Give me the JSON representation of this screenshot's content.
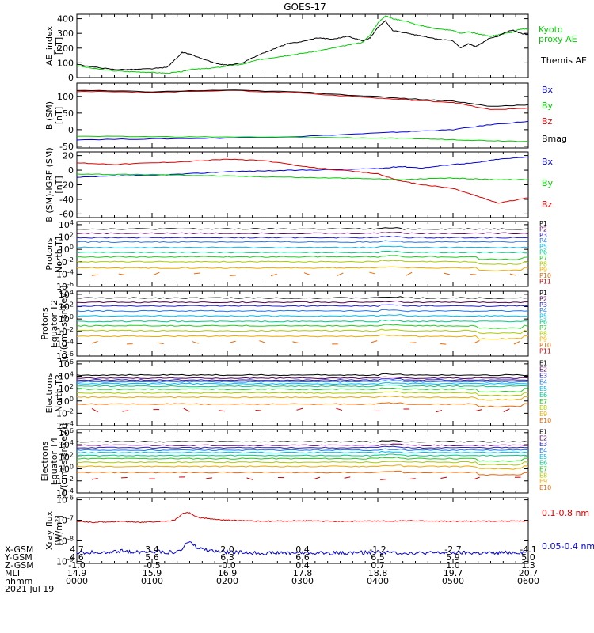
{
  "title": "GOES-17",
  "time_ticks": [
    "0000",
    "0100",
    "0200",
    "0300",
    "0400",
    "0500",
    "0600"
  ],
  "colors": {
    "black": "#000000",
    "red": "#dd0000",
    "green": "#00cc00",
    "blue": "#0000dd",
    "p_colors": [
      "#000000",
      "#5a005a",
      "#2222cc",
      "#2277ee",
      "#00bbee",
      "#00cc88",
      "#22cc22",
      "#aacc00",
      "#eeaa00",
      "#ee6600",
      "#cc0000"
    ],
    "xray_red": "#dd0000",
    "xray_blue": "#0000dd"
  },
  "footer": {
    "rows": [
      {
        "label": "X-GSM",
        "values": [
          "4.7",
          "3.4",
          "2.0",
          "0.4",
          "-1.2",
          "-2.7",
          "-4.1"
        ]
      },
      {
        "label": "Y-GSM",
        "values": [
          "4.6",
          "5.6",
          "6.3",
          "6.6",
          "6.5",
          "5.9",
          "5.0"
        ]
      },
      {
        "label": "Z-GSM",
        "values": [
          "-1.0",
          "-0.5",
          "-0.0",
          "0.4",
          "0.7",
          "1.0",
          "1.3"
        ]
      },
      {
        "label": "MLT",
        "values": [
          "14.9",
          "15.9",
          "16.9",
          "17.8",
          "18.8",
          "19.7",
          "20.7"
        ]
      },
      {
        "label": "hhmm",
        "values": [
          "0000",
          "0100",
          "0200",
          "0300",
          "0400",
          "0500",
          "0600"
        ]
      }
    ],
    "date": "2021 Jul 19"
  },
  "chart_data": [
    {
      "id": "ae",
      "type": "line",
      "ylabel": [
        "AE_index",
        "[nT]"
      ],
      "ylim": [
        0,
        430
      ],
      "yticks": [
        {
          "v": 0,
          "l": "0"
        },
        {
          "v": 100,
          "l": "100"
        },
        {
          "v": 200,
          "l": "200"
        },
        {
          "v": 300,
          "l": "300"
        },
        {
          "v": 400,
          "l": "400"
        }
      ],
      "x_hours": [
        0,
        0.25,
        0.5,
        0.75,
        1.0,
        1.2,
        1.4,
        1.5,
        1.7,
        1.9,
        2.0,
        2.2,
        2.4,
        2.6,
        2.8,
        3.0,
        3.2,
        3.4,
        3.6,
        3.8,
        3.9,
        4.0,
        4.1,
        4.2,
        4.4,
        4.5,
        4.6,
        4.8,
        5.0,
        5.1,
        5.2,
        5.3,
        5.4,
        5.5,
        5.6,
        5.7,
        5.8,
        5.9,
        6.0
      ],
      "series": [
        {
          "name": "Kyoto proxy AE",
          "color": "green",
          "values": [
            80,
            60,
            45,
            40,
            35,
            30,
            40,
            55,
            60,
            70,
            80,
            90,
            120,
            135,
            150,
            165,
            180,
            200,
            220,
            240,
            290,
            370,
            420,
            400,
            380,
            360,
            350,
            330,
            320,
            300,
            310,
            300,
            290,
            280,
            290,
            300,
            310,
            330,
            330
          ]
        },
        {
          "name": "Themis AE",
          "color": "black",
          "values": [
            90,
            70,
            55,
            55,
            60,
            70,
            170,
            160,
            120,
            90,
            85,
            100,
            150,
            190,
            230,
            245,
            270,
            260,
            280,
            250,
            270,
            340,
            385,
            320,
            300,
            290,
            280,
            260,
            250,
            200,
            230,
            210,
            240,
            270,
            280,
            310,
            320,
            300,
            290
          ]
        }
      ],
      "legend": [
        "Kyoto proxy AE",
        "Themis AE"
      ]
    },
    {
      "id": "bsm",
      "type": "line",
      "ylabel": [
        "B (SM)",
        "[nT]"
      ],
      "ylim": [
        -55,
        140
      ],
      "yticks": [
        {
          "v": -50,
          "l": "-50"
        },
        {
          "v": 0,
          "l": "0"
        },
        {
          "v": 50,
          "l": "50"
        },
        {
          "v": 100,
          "l": "100"
        }
      ],
      "x_hours": [
        0,
        1,
        2,
        3,
        4,
        4.5,
        5,
        5.5,
        6
      ],
      "series": [
        {
          "name": "Bx",
          "color": "blue",
          "values": [
            -30,
            -28,
            -25,
            -20,
            -10,
            -5,
            0,
            15,
            25
          ]
        },
        {
          "name": "By",
          "color": "green",
          "values": [
            -20,
            -21,
            -22,
            -23,
            -25,
            -27,
            -30,
            -33,
            -35
          ]
        },
        {
          "name": "Bz",
          "color": "red",
          "values": [
            115,
            112,
            118,
            110,
            95,
            88,
            82,
            60,
            65
          ]
        },
        {
          "name": "Bmag",
          "color": "black",
          "values": [
            118,
            114,
            119,
            113,
            99,
            92,
            86,
            70,
            75
          ]
        }
      ],
      "legend": [
        "Bx",
        "By",
        "Bz",
        "Bmag"
      ]
    },
    {
      "id": "bigrf",
      "type": "line",
      "ylabel": [
        "B (SM)-IGRF (SM)",
        "[nT]"
      ],
      "ylim": [
        -65,
        25
      ],
      "yticks": [
        {
          "v": -60,
          "l": "-60"
        },
        {
          "v": -40,
          "l": "-40"
        },
        {
          "v": -20,
          "l": "-20"
        },
        {
          "v": 0,
          "l": "0"
        },
        {
          "v": 20,
          "l": "20"
        }
      ],
      "x_hours": [
        0,
        0.5,
        1,
        1.5,
        2,
        2.5,
        3,
        3.5,
        4,
        4.3,
        4.6,
        5,
        5.3,
        5.6,
        6
      ],
      "series": [
        {
          "name": "Bx",
          "color": "blue",
          "values": [
            -10,
            -8,
            -7,
            -5,
            -2,
            -1,
            0,
            1,
            2,
            5,
            3,
            8,
            10,
            15,
            18
          ]
        },
        {
          "name": "By",
          "color": "green",
          "values": [
            -5,
            -6,
            -6,
            -7,
            -8,
            -9,
            -10,
            -11,
            -12,
            -13,
            -12,
            -11,
            -12,
            -13,
            -13
          ]
        },
        {
          "name": "Bz",
          "color": "red",
          "values": [
            10,
            8,
            10,
            12,
            15,
            13,
            5,
            0,
            -5,
            -15,
            -20,
            -25,
            -35,
            -45,
            -38
          ]
        }
      ],
      "legend": [
        "Bx",
        "By",
        "Bz"
      ]
    },
    {
      "id": "protons_t1",
      "type": "line",
      "log": true,
      "ylabel": [
        "Protons",
        "North T1"
      ],
      "ylim_exp": [
        -6,
        4.5
      ],
      "yticks_exp": [
        4,
        2,
        0,
        -2,
        -4,
        -6
      ],
      "levels_exp": [
        3.3,
        2.6,
        1.9,
        1.2,
        0.3,
        -0.5,
        -1.2,
        -2.0,
        -3.0
      ],
      "legend": [
        "P1",
        "P2",
        "P3",
        "P4",
        "P5",
        "P6",
        "P7",
        "P8",
        "P9",
        "P10",
        "P11"
      ]
    },
    {
      "id": "protons_t2",
      "type": "line",
      "log": true,
      "ylabel": [
        "Protons",
        "Equator T2",
        "[p/(cm²-s-sr-keV)]"
      ],
      "ylim_exp": [
        -6,
        4.5
      ],
      "yticks_exp": [
        4,
        2,
        0,
        -2,
        -4,
        -6
      ],
      "levels_exp": [
        3.4,
        2.7,
        2.1,
        1.3,
        0.5,
        -0.4,
        -1.1,
        -1.9,
        -2.8
      ],
      "legend": [
        "P1",
        "P2",
        "P3",
        "P4",
        "P5",
        "P6",
        "P7",
        "P8",
        "P9",
        "P10",
        "P11"
      ]
    },
    {
      "id": "electrons_t3",
      "type": "line",
      "log": true,
      "ylabel": [
        "Electrons",
        "North T3"
      ],
      "ylim_exp": [
        -4,
        6.5
      ],
      "yticks_exp": [
        6,
        4,
        2,
        0,
        -2,
        -4
      ],
      "levels_exp": [
        4.2,
        3.7,
        3.4,
        3.1,
        2.8,
        2.4,
        1.9,
        1.3,
        0.6,
        -0.5
      ],
      "legend": [
        "E1",
        "E2",
        "E3",
        "E4",
        "E5",
        "E6",
        "E7",
        "E8",
        "E9",
        "E10"
      ]
    },
    {
      "id": "electrons_t4",
      "type": "line",
      "log": true,
      "ylabel": [
        "Electrons",
        "Equator T4",
        "[e/(cm²-s-sr-keV)]"
      ],
      "ylim_exp": [
        -4,
        6.5
      ],
      "yticks_exp": [
        6,
        4,
        2,
        0,
        -2,
        -4
      ],
      "levels_exp": [
        4.5,
        3.9,
        3.5,
        3.1,
        2.7,
        2.2,
        1.7,
        1.1,
        0.4,
        -0.6
      ],
      "legend": [
        "E1",
        "E2",
        "E3",
        "E4",
        "E5",
        "E6",
        "E7",
        "E8",
        "E9",
        "E10"
      ]
    },
    {
      "id": "xray",
      "type": "line",
      "log": true,
      "ylabel": [
        "Xray flux",
        "[W/m²]"
      ],
      "ylim_exp": [
        -9.1,
        -5.9
      ],
      "yticks_exp": [
        -6,
        -7,
        -8,
        -9
      ],
      "x_hours": [
        0,
        0.2,
        0.4,
        0.6,
        0.8,
        1.0,
        1.2,
        1.3,
        1.4,
        1.45,
        1.5,
        1.6,
        1.8,
        2.0,
        2.5,
        3,
        3.5,
        4,
        4.5,
        5,
        5.5,
        6
      ],
      "series": [
        {
          "name": "0.1-0.8 nm",
          "color": "red",
          "values": [
            -7.05,
            -7.1,
            -7.08,
            -7.05,
            -7.1,
            -7.08,
            -7.05,
            -7.0,
            -6.7,
            -6.62,
            -6.65,
            -6.85,
            -6.95,
            -7.0,
            -7.05,
            -7.03,
            -7.05,
            -7.04,
            -7.03,
            -7.05,
            -7.04,
            -7.04
          ]
        },
        {
          "name": "0.05-0.4 nm",
          "color": "blue",
          "values": [
            -8.6,
            -8.55,
            -8.6,
            -8.5,
            -8.55,
            -8.5,
            -8.55,
            -8.55,
            -8.45,
            -8.1,
            -8.05,
            -8.35,
            -8.5,
            -8.55,
            -8.6,
            -8.58,
            -8.6,
            -8.55,
            -8.6,
            -8.58,
            -8.6,
            -8.55
          ]
        }
      ],
      "legend": [
        "0.1-0.8 nm",
        "0.05-0.4 nm"
      ]
    }
  ]
}
